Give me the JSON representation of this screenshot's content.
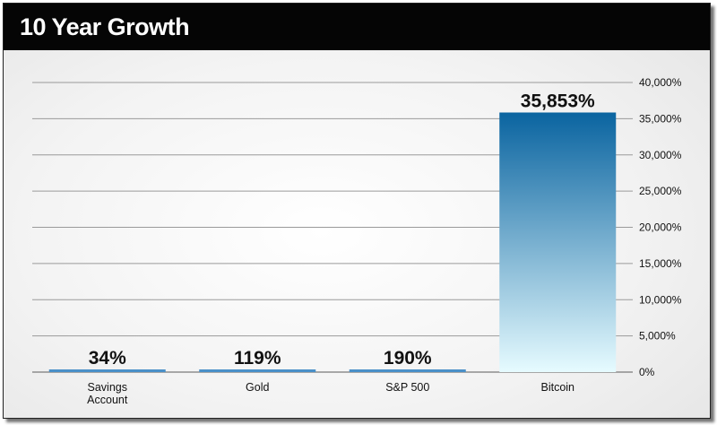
{
  "chart_data": {
    "type": "bar",
    "title": "10 Year Growth",
    "xlabel": "",
    "ylabel": "",
    "ylim": [
      0,
      40000
    ],
    "ytick_values": [
      0,
      5000,
      10000,
      15000,
      20000,
      25000,
      30000,
      35000,
      40000
    ],
    "ytick_labels": [
      "0%",
      "5,000%",
      "10,000%",
      "15,000%",
      "20,000%",
      "25,000%",
      "30,000%",
      "35,000%",
      "40,000%"
    ],
    "y_axis_position": "right",
    "grid": true,
    "categories": [
      "Savings Account",
      "Gold",
      "S&P 500",
      "Bitcoin"
    ],
    "category_lines": [
      [
        "Savings",
        "Account"
      ],
      [
        "Gold"
      ],
      [
        "S&P 500"
      ],
      [
        "Bitcoin"
      ]
    ],
    "values": [
      34,
      119,
      190,
      35853
    ],
    "data_labels": [
      "34%",
      "119%",
      "190%",
      "35,853%"
    ]
  },
  "colors": {
    "bar_top": "#0a64a0",
    "bar_bottom": "#e6fbff",
    "small_bar": "#4a90c8"
  }
}
